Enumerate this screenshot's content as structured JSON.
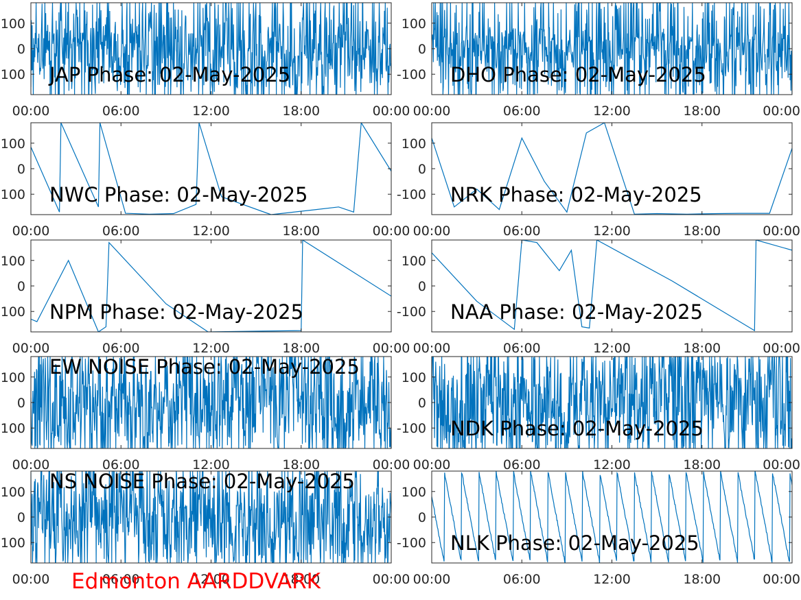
{
  "station_label": "Edmonton AARDDVARK",
  "colors": {
    "trace": "#0072BD",
    "station_label": "#FF0000",
    "axes": "#262626"
  },
  "chart_data": [
    {
      "type": "line",
      "title": "JAP Phase: 02-May-2025",
      "x_ticks": [
        "00:00",
        "06:00",
        "12:00",
        "18:00",
        "00:00"
      ],
      "y_ticks": [
        "100",
        "0",
        "-100"
      ],
      "ylim": [
        -180,
        180
      ],
      "xlim_hours": [
        0,
        24
      ],
      "grid": false,
      "style": "noise",
      "mean": 0,
      "spread": 120
    },
    {
      "type": "line",
      "title": "DHO Phase: 02-May-2025",
      "x_ticks": [
        "00:00",
        "06:00",
        "12:00",
        "18:00",
        "00:00"
      ],
      "y_ticks": [
        "100",
        "0",
        "-100"
      ],
      "ylim": [
        -180,
        180
      ],
      "xlim_hours": [
        0,
        24
      ],
      "grid": false,
      "style": "noise",
      "mean": 0,
      "spread": 80
    },
    {
      "type": "line",
      "title": "NWC Phase: 02-May-2025",
      "x_ticks": [
        "00:00",
        "06:00",
        "12:00",
        "18:00",
        "00:00"
      ],
      "y_ticks": [
        "100",
        "0",
        "-100"
      ],
      "ylim": [
        -180,
        180
      ],
      "xlim_hours": [
        0,
        24
      ],
      "grid": false,
      "style": "wrapped",
      "x_hours": [
        0,
        1.9,
        2.0,
        4.5,
        4.6,
        6.3,
        7.9,
        9.5,
        11.0,
        11.2,
        12.7,
        16.0,
        19.0,
        20.5,
        21.5,
        22.0,
        24.0
      ],
      "y_deg": [
        85,
        -170,
        180,
        -150,
        180,
        -175,
        -178,
        -176,
        -140,
        180,
        -110,
        -180,
        -160,
        -150,
        -170,
        180,
        -10
      ]
    },
    {
      "type": "line",
      "title": "NRK Phase: 02-May-2025",
      "x_ticks": [
        "00:00",
        "06:00",
        "12:00",
        "18:00",
        "00:00"
      ],
      "y_ticks": [
        "100",
        "0",
        "-100"
      ],
      "ylim": [
        -180,
        180
      ],
      "xlim_hours": [
        0,
        24
      ],
      "grid": false,
      "style": "wrapped",
      "x_hours": [
        0,
        1.5,
        3.0,
        4.5,
        6.0,
        7.5,
        9.0,
        10.3,
        11.5,
        13.5,
        15.0,
        17.0,
        19.0,
        20.5,
        22.5,
        24.0
      ],
      "y_deg": [
        120,
        -150,
        -80,
        -160,
        120,
        -50,
        -170,
        140,
        180,
        -178,
        -176,
        -178,
        -176,
        -175,
        -175,
        80
      ]
    },
    {
      "type": "line",
      "title": "NPM Phase: 02-May-2025",
      "x_ticks": [
        "00:00",
        "06:00",
        "12:00",
        "18:00",
        "00:00"
      ],
      "y_ticks": [
        "100",
        "0",
        "-100"
      ],
      "ylim": [
        -180,
        180
      ],
      "xlim_hours": [
        0,
        24
      ],
      "grid": false,
      "style": "wrapped",
      "x_hours": [
        0,
        0.4,
        2.5,
        4.5,
        5.0,
        5.2,
        9.0,
        11.8,
        18.0,
        18.1,
        24.0
      ],
      "y_deg": [
        -130,
        -140,
        100,
        -180,
        -160,
        170,
        -70,
        -180,
        -175,
        180,
        -40
      ]
    },
    {
      "type": "line",
      "title": "NAA Phase: 02-May-2025",
      "x_ticks": [
        "00:00",
        "06:00",
        "12:00",
        "18:00",
        "00:00"
      ],
      "y_ticks": [
        "100",
        "0",
        "-100"
      ],
      "ylim": [
        -180,
        180
      ],
      "xlim_hours": [
        0,
        24
      ],
      "grid": false,
      "style": "wrapped",
      "x_hours": [
        0,
        3.0,
        5.5,
        6.0,
        7.0,
        8.5,
        9.3,
        10.0,
        10.5,
        11.0,
        16.0,
        21.5,
        21.6,
        24.0
      ],
      "y_deg": [
        130,
        -60,
        -170,
        180,
        170,
        60,
        140,
        -160,
        -165,
        180,
        20,
        -175,
        180,
        140
      ]
    },
    {
      "type": "line",
      "title": "EW NOISE Phase: 02-May-2025",
      "x_ticks": [
        "00:00",
        "06:00",
        "12:00",
        "18:00",
        "00:00"
      ],
      "y_ticks": [
        "100",
        "0",
        "-100"
      ],
      "ylim": [
        -180,
        180
      ],
      "xlim_hours": [
        0,
        24
      ],
      "grid": false,
      "style": "noise",
      "mean": 0,
      "spread": 150
    },
    {
      "type": "line",
      "title": "NDK Phase: 02-May-2025",
      "x_ticks": [
        "00:00",
        "06:00",
        "12:00",
        "18:00",
        "00:00"
      ],
      "y_ticks": [
        "100",
        "0",
        "-100"
      ],
      "ylim": [
        -180,
        180
      ],
      "xlim_hours": [
        0,
        24
      ],
      "grid": false,
      "style": "noise",
      "mean": 0,
      "spread": 170
    },
    {
      "type": "line",
      "title": "NS NOISE Phase: 02-May-2025",
      "x_ticks": [
        "00:00",
        "06:00",
        "12:00",
        "18:00",
        "00:00"
      ],
      "y_ticks": [
        "100",
        "0",
        "-100"
      ],
      "ylim": [
        -180,
        180
      ],
      "xlim_hours": [
        0,
        24
      ],
      "grid": false,
      "style": "noise",
      "mean": 0,
      "spread": 140
    },
    {
      "type": "line",
      "title": "NLK Phase: 02-May-2025",
      "x_ticks": [
        "00:00",
        "06:00",
        "12:00",
        "18:00",
        "00:00"
      ],
      "y_ticks": [
        "100",
        "0",
        "-100"
      ],
      "ylim": [
        -180,
        180
      ],
      "xlim_hours": [
        0,
        24
      ],
      "grid": false,
      "style": "sawtooth",
      "period_hours": 1.15,
      "start_deg": 80
    }
  ]
}
